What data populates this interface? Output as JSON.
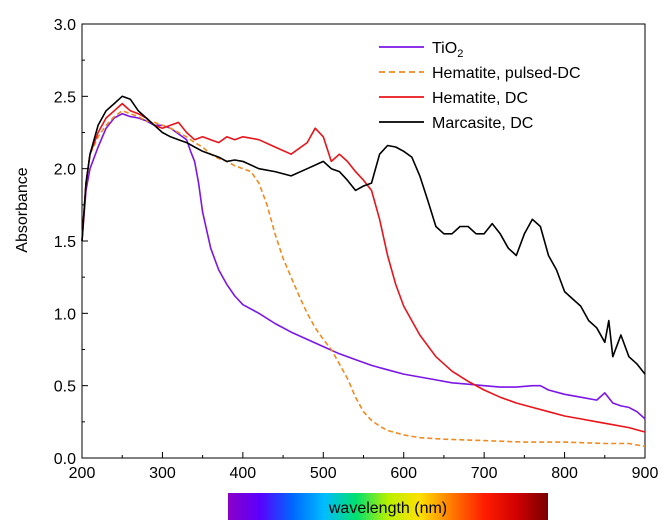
{
  "chart_data": {
    "type": "line",
    "xlabel": "wavelength (nm)",
    "ylabel": "Absorbance",
    "xlim": [
      200,
      900
    ],
    "ylim": [
      0.0,
      3.0
    ],
    "x_ticks": [
      "200",
      "300",
      "400",
      "500",
      "600",
      "700",
      "800",
      "900"
    ],
    "y_ticks": [
      "0.0",
      "0.5",
      "1.0",
      "1.5",
      "2.0",
      "2.5",
      "3.0"
    ],
    "grid": false,
    "legend_position": "top-right",
    "series": [
      {
        "name": "TiO2",
        "legend_label": "TiO",
        "legend_sub": "2",
        "color": "#7b16e6",
        "style": "solid",
        "points": [
          [
            200,
            1.5
          ],
          [
            205,
            1.85
          ],
          [
            210,
            2.0
          ],
          [
            220,
            2.15
          ],
          [
            230,
            2.28
          ],
          [
            240,
            2.35
          ],
          [
            250,
            2.38
          ],
          [
            260,
            2.36
          ],
          [
            270,
            2.35
          ],
          [
            280,
            2.33
          ],
          [
            290,
            2.3
          ],
          [
            300,
            2.3
          ],
          [
            310,
            2.28
          ],
          [
            320,
            2.24
          ],
          [
            330,
            2.2
          ],
          [
            335,
            2.12
          ],
          [
            340,
            2.05
          ],
          [
            345,
            1.9
          ],
          [
            350,
            1.7
          ],
          [
            360,
            1.45
          ],
          [
            370,
            1.3
          ],
          [
            380,
            1.2
          ],
          [
            390,
            1.12
          ],
          [
            400,
            1.06
          ],
          [
            420,
            1.0
          ],
          [
            440,
            0.93
          ],
          [
            460,
            0.87
          ],
          [
            480,
            0.82
          ],
          [
            500,
            0.77
          ],
          [
            520,
            0.72
          ],
          [
            540,
            0.68
          ],
          [
            560,
            0.64
          ],
          [
            580,
            0.61
          ],
          [
            600,
            0.58
          ],
          [
            620,
            0.56
          ],
          [
            640,
            0.54
          ],
          [
            660,
            0.52
          ],
          [
            680,
            0.51
          ],
          [
            700,
            0.5
          ],
          [
            720,
            0.49
          ],
          [
            740,
            0.49
          ],
          [
            760,
            0.5
          ],
          [
            770,
            0.5
          ],
          [
            780,
            0.47
          ],
          [
            800,
            0.44
          ],
          [
            820,
            0.42
          ],
          [
            840,
            0.4
          ],
          [
            850,
            0.45
          ],
          [
            860,
            0.38
          ],
          [
            870,
            0.36
          ],
          [
            880,
            0.35
          ],
          [
            890,
            0.32
          ],
          [
            900,
            0.27
          ]
        ]
      },
      {
        "name": "Hematite, pulsed-DC",
        "color": "#f08a1e",
        "style": "dashed",
        "points": [
          [
            200,
            1.5
          ],
          [
            205,
            1.9
          ],
          [
            210,
            2.1
          ],
          [
            220,
            2.22
          ],
          [
            230,
            2.3
          ],
          [
            240,
            2.36
          ],
          [
            250,
            2.4
          ],
          [
            260,
            2.38
          ],
          [
            270,
            2.36
          ],
          [
            280,
            2.33
          ],
          [
            290,
            2.32
          ],
          [
            300,
            2.3
          ],
          [
            310,
            2.28
          ],
          [
            320,
            2.25
          ],
          [
            330,
            2.22
          ],
          [
            340,
            2.18
          ],
          [
            350,
            2.15
          ],
          [
            360,
            2.1
          ],
          [
            370,
            2.07
          ],
          [
            380,
            2.05
          ],
          [
            390,
            2.02
          ],
          [
            400,
            2.0
          ],
          [
            410,
            1.98
          ],
          [
            420,
            1.9
          ],
          [
            430,
            1.75
          ],
          [
            440,
            1.55
          ],
          [
            450,
            1.38
          ],
          [
            460,
            1.25
          ],
          [
            470,
            1.12
          ],
          [
            480,
            1.0
          ],
          [
            490,
            0.9
          ],
          [
            500,
            0.82
          ],
          [
            510,
            0.75
          ],
          [
            520,
            0.65
          ],
          [
            530,
            0.55
          ],
          [
            540,
            0.42
          ],
          [
            550,
            0.32
          ],
          [
            560,
            0.26
          ],
          [
            570,
            0.22
          ],
          [
            580,
            0.19
          ],
          [
            600,
            0.16
          ],
          [
            620,
            0.14
          ],
          [
            650,
            0.13
          ],
          [
            700,
            0.12
          ],
          [
            750,
            0.11
          ],
          [
            800,
            0.11
          ],
          [
            850,
            0.1
          ],
          [
            880,
            0.1
          ],
          [
            900,
            0.08
          ]
        ]
      },
      {
        "name": "Hematite, DC",
        "color": "#e8141a",
        "style": "solid",
        "points": [
          [
            200,
            1.5
          ],
          [
            205,
            1.9
          ],
          [
            210,
            2.1
          ],
          [
            220,
            2.25
          ],
          [
            230,
            2.35
          ],
          [
            240,
            2.4
          ],
          [
            250,
            2.45
          ],
          [
            260,
            2.4
          ],
          [
            270,
            2.38
          ],
          [
            280,
            2.35
          ],
          [
            290,
            2.3
          ],
          [
            300,
            2.28
          ],
          [
            310,
            2.3
          ],
          [
            320,
            2.32
          ],
          [
            330,
            2.25
          ],
          [
            340,
            2.2
          ],
          [
            350,
            2.22
          ],
          [
            360,
            2.2
          ],
          [
            370,
            2.18
          ],
          [
            380,
            2.22
          ],
          [
            390,
            2.2
          ],
          [
            400,
            2.22
          ],
          [
            420,
            2.2
          ],
          [
            440,
            2.15
          ],
          [
            460,
            2.1
          ],
          [
            480,
            2.18
          ],
          [
            490,
            2.28
          ],
          [
            500,
            2.22
          ],
          [
            510,
            2.05
          ],
          [
            520,
            2.1
          ],
          [
            530,
            2.05
          ],
          [
            540,
            1.98
          ],
          [
            550,
            1.92
          ],
          [
            560,
            1.85
          ],
          [
            570,
            1.65
          ],
          [
            580,
            1.4
          ],
          [
            590,
            1.2
          ],
          [
            600,
            1.05
          ],
          [
            620,
            0.85
          ],
          [
            640,
            0.7
          ],
          [
            660,
            0.6
          ],
          [
            680,
            0.53
          ],
          [
            700,
            0.47
          ],
          [
            720,
            0.42
          ],
          [
            740,
            0.38
          ],
          [
            760,
            0.35
          ],
          [
            780,
            0.32
          ],
          [
            800,
            0.29
          ],
          [
            820,
            0.27
          ],
          [
            840,
            0.25
          ],
          [
            860,
            0.23
          ],
          [
            880,
            0.21
          ],
          [
            900,
            0.18
          ]
        ]
      },
      {
        "name": "Marcasite, DC",
        "color": "#000000",
        "style": "solid",
        "points": [
          [
            200,
            1.5
          ],
          [
            205,
            1.9
          ],
          [
            210,
            2.1
          ],
          [
            220,
            2.3
          ],
          [
            230,
            2.4
          ],
          [
            240,
            2.45
          ],
          [
            250,
            2.5
          ],
          [
            260,
            2.48
          ],
          [
            270,
            2.4
          ],
          [
            280,
            2.35
          ],
          [
            290,
            2.3
          ],
          [
            300,
            2.25
          ],
          [
            310,
            2.22
          ],
          [
            320,
            2.2
          ],
          [
            330,
            2.18
          ],
          [
            340,
            2.15
          ],
          [
            350,
            2.12
          ],
          [
            360,
            2.1
          ],
          [
            370,
            2.08
          ],
          [
            380,
            2.05
          ],
          [
            390,
            2.06
          ],
          [
            400,
            2.05
          ],
          [
            420,
            2.0
          ],
          [
            440,
            1.98
          ],
          [
            460,
            1.95
          ],
          [
            480,
            2.0
          ],
          [
            500,
            2.05
          ],
          [
            510,
            2.0
          ],
          [
            520,
            1.98
          ],
          [
            530,
            1.92
          ],
          [
            540,
            1.85
          ],
          [
            550,
            1.88
          ],
          [
            560,
            1.9
          ],
          [
            570,
            2.1
          ],
          [
            580,
            2.16
          ],
          [
            590,
            2.15
          ],
          [
            600,
            2.12
          ],
          [
            610,
            2.08
          ],
          [
            620,
            1.95
          ],
          [
            630,
            1.78
          ],
          [
            640,
            1.6
          ],
          [
            650,
            1.55
          ],
          [
            660,
            1.55
          ],
          [
            670,
            1.6
          ],
          [
            680,
            1.6
          ],
          [
            690,
            1.55
          ],
          [
            700,
            1.55
          ],
          [
            710,
            1.62
          ],
          [
            720,
            1.55
          ],
          [
            730,
            1.45
          ],
          [
            740,
            1.4
          ],
          [
            750,
            1.55
          ],
          [
            760,
            1.65
          ],
          [
            770,
            1.6
          ],
          [
            780,
            1.4
          ],
          [
            790,
            1.3
          ],
          [
            800,
            1.15
          ],
          [
            810,
            1.1
          ],
          [
            820,
            1.05
          ],
          [
            830,
            0.95
          ],
          [
            840,
            0.9
          ],
          [
            850,
            0.8
          ],
          [
            855,
            0.95
          ],
          [
            860,
            0.7
          ],
          [
            870,
            0.85
          ],
          [
            880,
            0.7
          ],
          [
            890,
            0.65
          ],
          [
            900,
            0.58
          ]
        ]
      }
    ],
    "colorbar": {
      "label": "wavelength (nm)",
      "colors": [
        "#8a00c8",
        "#5a00ff",
        "#0066ff",
        "#00bcff",
        "#00e070",
        "#b8f000",
        "#ffe000",
        "#ff7800",
        "#ff1e00",
        "#d20000",
        "#780000"
      ]
    }
  }
}
